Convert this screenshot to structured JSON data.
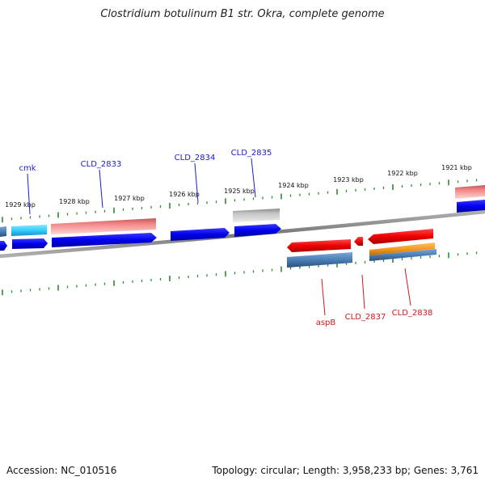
{
  "title": "Clostridium botulinum B1 str. Okra, complete genome",
  "accession": "Accession: NC_010516",
  "summary": "Topology: circular; Length: 3,958,233 bp; Genes: 3,761",
  "colors": {
    "backbone": "#8a8a8a",
    "tick": "#2e8b2e",
    "forward_gene": "#0000ee",
    "reverse_gene": "#ee0000",
    "forward_label": "#1a1acc",
    "reverse_label": "#cc1a1a",
    "rrna_pink": "#f08080",
    "cds_steelblue": "#4a7fb5",
    "cds_cyan": "#33ccff",
    "cds_grey": "#b8b8b8",
    "cds_orange": "#f59a23"
  },
  "scale_labels": [
    "1929 kbp",
    "1928 kbp",
    "1927 kbp",
    "1926 kbp",
    "1925 kbp",
    "1924 kbp",
    "1923 kbp",
    "1922 kbp",
    "1921 kbp"
  ],
  "forward_gene_labels": [
    "cmk",
    "CLD_2833",
    "CLD_2834",
    "CLD_2835"
  ],
  "reverse_gene_labels": [
    "aspB",
    "CLD_2837",
    "CLD_2838"
  ]
}
